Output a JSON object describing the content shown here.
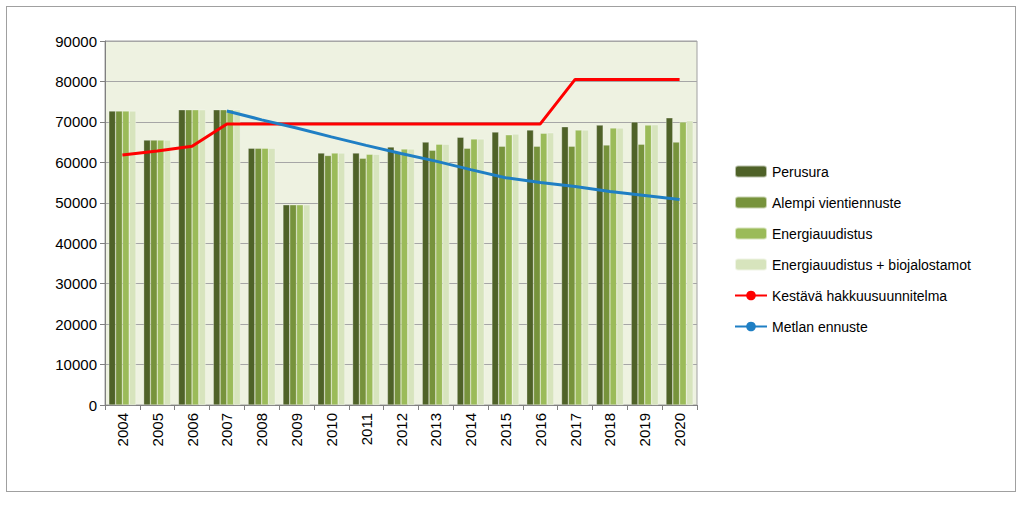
{
  "chart_data": {
    "type": "bar",
    "categories": [
      "2004",
      "2005",
      "2006",
      "2007",
      "2008",
      "2009",
      "2010",
      "2011",
      "2012",
      "2013",
      "2014",
      "2015",
      "2016",
      "2017",
      "2018",
      "2019",
      "2020"
    ],
    "series": [
      {
        "name": "Perusura",
        "type": "bar",
        "color": "#4f6228",
        "values": [
          72700,
          65500,
          73000,
          73000,
          63500,
          49500,
          62300,
          62300,
          63800,
          65000,
          66200,
          67500,
          68000,
          68800,
          69200,
          70000,
          71000
        ]
      },
      {
        "name": "Alempi vientiennuste",
        "type": "bar",
        "color": "#77933c",
        "values": [
          72700,
          65500,
          73000,
          73000,
          63500,
          49500,
          61700,
          61000,
          62500,
          63000,
          63500,
          64000,
          64000,
          64000,
          64300,
          64500,
          65000
        ]
      },
      {
        "name": "Energiauudistus",
        "type": "bar",
        "color": "#9bbb59",
        "values": [
          72700,
          65500,
          73000,
          73000,
          63500,
          49500,
          62300,
          62000,
          63300,
          64500,
          65800,
          66800,
          67200,
          68000,
          68500,
          69200,
          70000
        ]
      },
      {
        "name": "Energiauudistus + biojalostamot",
        "type": "bar",
        "color": "#d7e4bd",
        "values": [
          72700,
          65500,
          73000,
          73000,
          63500,
          49500,
          62300,
          62000,
          63300,
          64500,
          65800,
          67000,
          67300,
          68000,
          68500,
          69300,
          70300
        ]
      },
      {
        "name": "Kestävä hakkuusuunnitelma",
        "type": "line",
        "color": "#ff0000",
        "marker": "none",
        "values": [
          61800,
          62800,
          64000,
          69500,
          69500,
          69500,
          69500,
          69500,
          69500,
          69500,
          69500,
          69500,
          69500,
          80500,
          80500,
          80500,
          80500
        ]
      },
      {
        "name": "Metlan ennuste",
        "type": "line",
        "color": "#1f7fc4",
        "marker": "none",
        "values": [
          null,
          null,
          null,
          72700,
          70500,
          68500,
          66300,
          64200,
          62200,
          60300,
          58200,
          56200,
          55000,
          54000,
          52800,
          51800,
          50800
        ]
      }
    ],
    "ylim": [
      0,
      90000
    ],
    "yticks": [
      0,
      10000,
      20000,
      30000,
      40000,
      50000,
      60000,
      70000,
      80000,
      90000
    ],
    "grid": true,
    "legend": "right"
  }
}
